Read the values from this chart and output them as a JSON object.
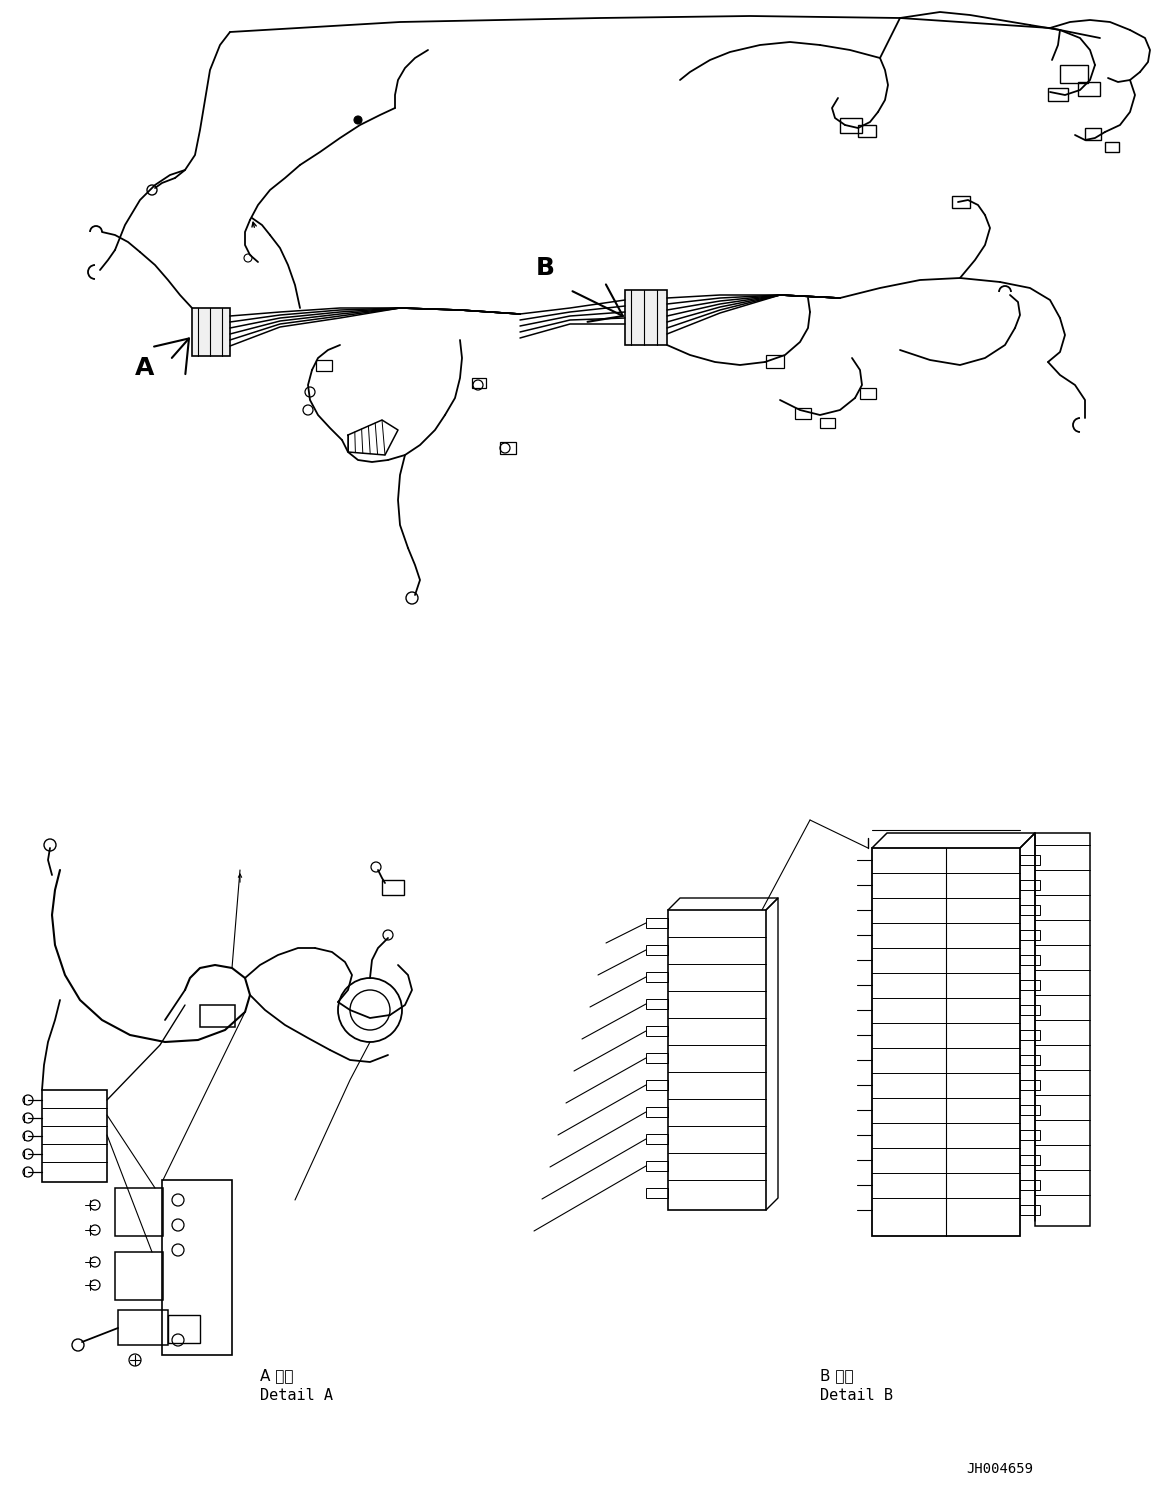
{
  "background_color": "#ffffff",
  "line_color": "#000000",
  "fig_width": 11.63,
  "fig_height": 14.88,
  "dpi": 100,
  "part_number": "JH004659",
  "detail_A_jp": "A 詳細",
  "detail_A_en": "Detail A",
  "detail_B_jp": "B 詳細",
  "detail_B_en": "Detail B"
}
